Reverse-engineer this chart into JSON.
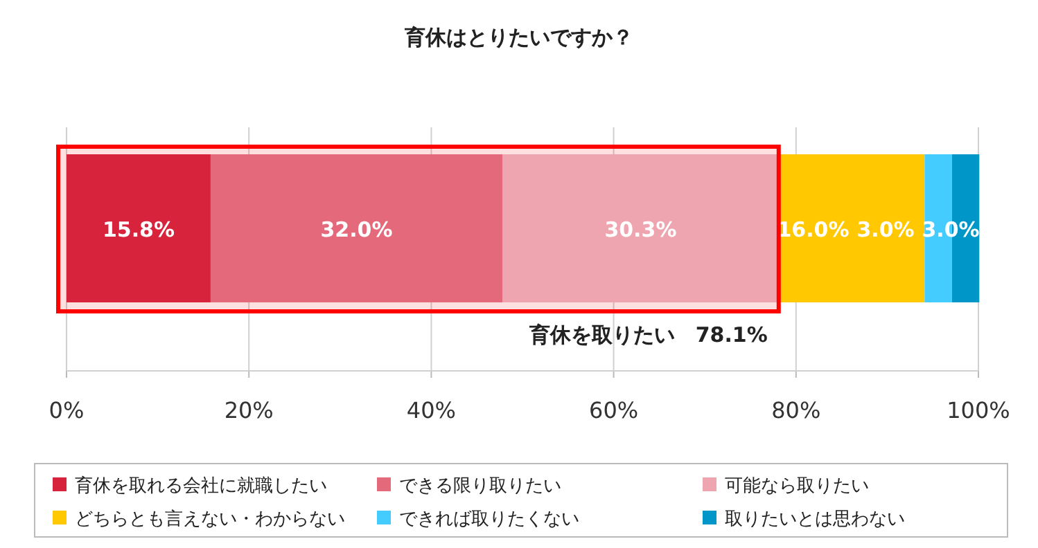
{
  "chart_data": {
    "type": "bar",
    "title": "育休はとりたいですか？",
    "orientation": "horizontal",
    "stacked": true,
    "categories": [
      null
    ],
    "series": [
      {
        "name": "育休を取れる会社に就職したい",
        "color": "#d7243c",
        "values": [
          15.8
        ]
      },
      {
        "name": "できる限り取りたい",
        "color": "#e46a7b",
        "values": [
          32.0
        ]
      },
      {
        "name": "可能なら取りたい",
        "color": "#efa5af",
        "values": [
          30.3
        ]
      },
      {
        "name": "どちらとも言えない・わからない",
        "color": "#ffc800",
        "values": [
          16.0
        ]
      },
      {
        "name": "できれば取りたくない",
        "color": "#44ccff",
        "values": [
          3.0
        ]
      },
      {
        "name": "取りたいとは思わない",
        "color": "#0096c8",
        "values": [
          3.0
        ]
      }
    ],
    "value_labels": [
      "15.8%",
      "32.0%",
      "30.3%",
      "16.0%",
      "3.0%",
      "3.0%"
    ],
    "bands": [
      {
        "axis": "x",
        "from": 0,
        "to": 78.1,
        "label": "育休を取りたい　78.1%",
        "color": "#ff0000"
      }
    ],
    "xlim": [
      0,
      100
    ],
    "xticks": [
      {
        "value": 0,
        "label": "0%"
      },
      {
        "value": 20,
        "label": "20%"
      },
      {
        "value": 40,
        "label": "40%"
      },
      {
        "value": 60,
        "label": "60%"
      },
      {
        "value": 80,
        "label": "80%"
      },
      {
        "value": 100,
        "label": "100%"
      }
    ],
    "grid": "x",
    "legend": "bottom"
  }
}
